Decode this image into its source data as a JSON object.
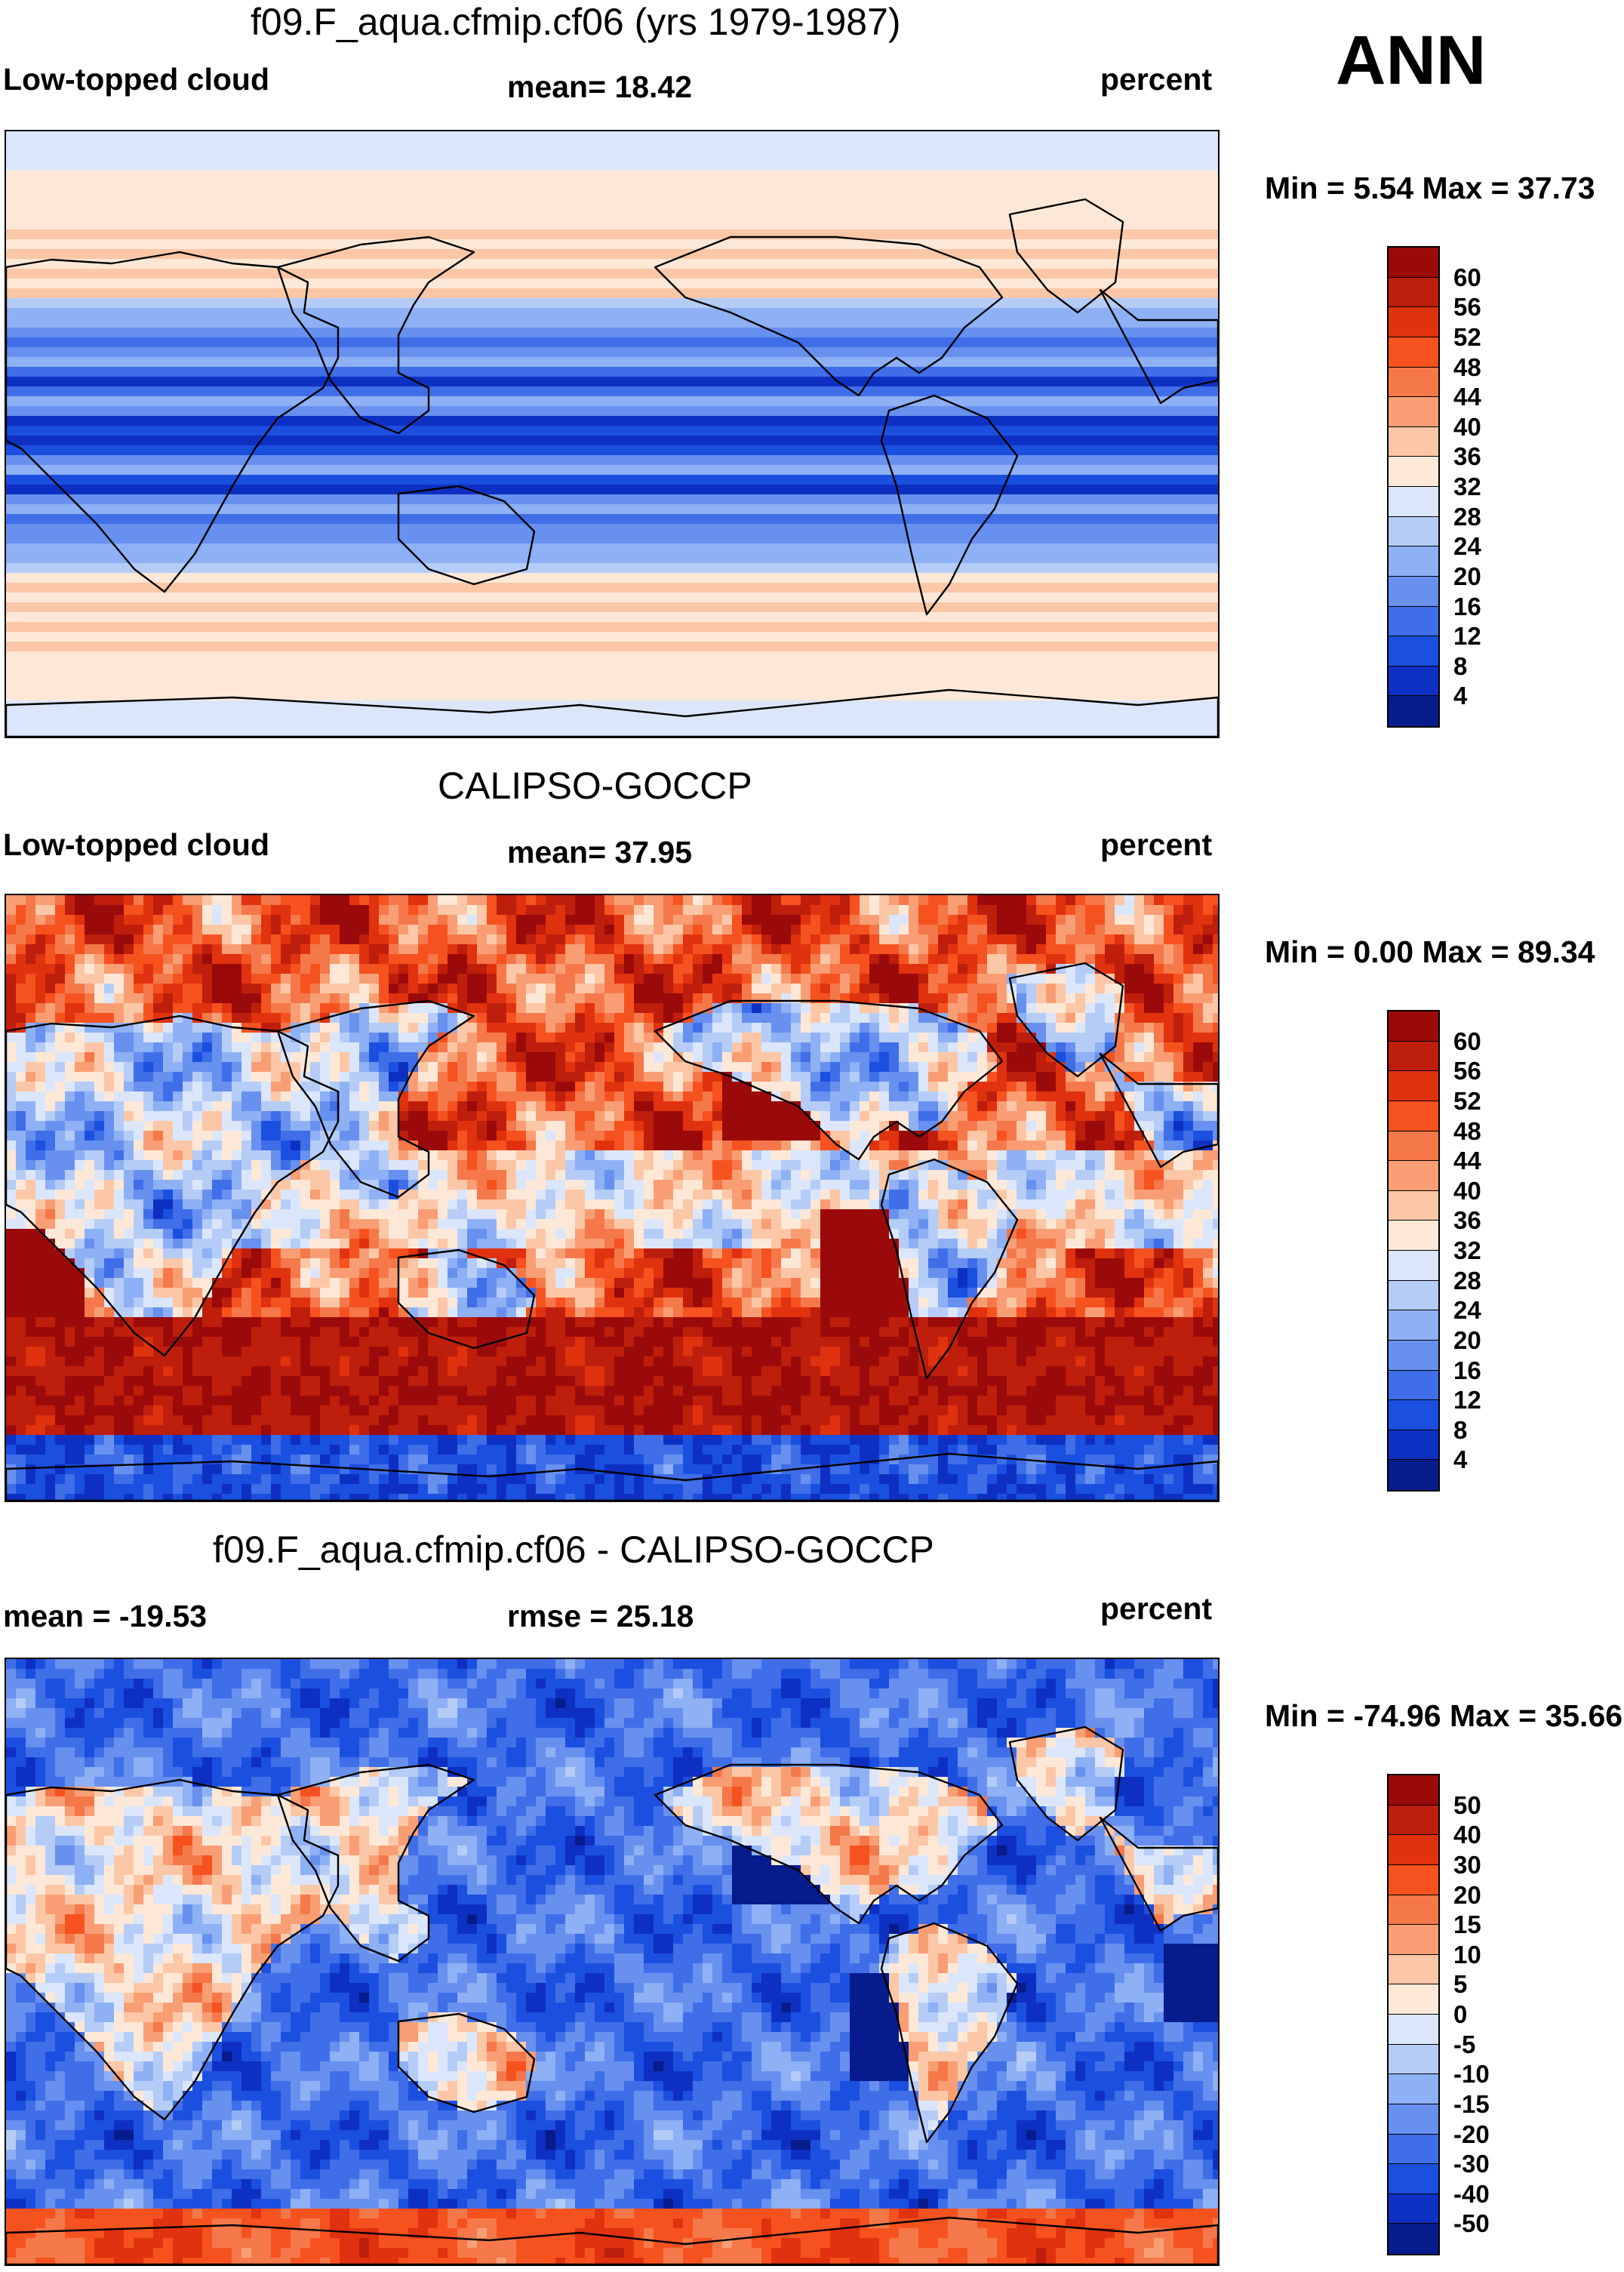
{
  "season": "ANN",
  "panels": [
    {
      "title": "f09.F_aqua.cfmip.cf06 (yrs 1979-1987)",
      "left_label": "Low-topped cloud",
      "center_label": "mean=  18.42",
      "right_label": "percent",
      "minmax": "Min =   5.54 Max =  37.73",
      "colorbar": {
        "ticks": [
          "60",
          "56",
          "52",
          "48",
          "44",
          "40",
          "36",
          "32",
          "28",
          "24",
          "20",
          "16",
          "12",
          "8",
          "4"
        ],
        "colors": [
          "#9b0a0a",
          "#be1e0c",
          "#e0320f",
          "#f65220",
          "#f5784a",
          "#f99e74",
          "#fcc7a6",
          "#fde8d8",
          "#dbe6fa",
          "#b5ccf7",
          "#8eb0f4",
          "#6890ef",
          "#3f6ee8",
          "#1b4fdf",
          "#0e30c2",
          "#061b8c"
        ]
      },
      "field": "model"
    },
    {
      "title": "CALIPSO-GOCCP",
      "left_label": "Low-topped cloud",
      "center_label": "mean=  37.95",
      "right_label": "percent",
      "minmax": "Min =   0.00 Max =  89.34",
      "colorbar": {
        "ticks": [
          "60",
          "56",
          "52",
          "48",
          "44",
          "40",
          "36",
          "32",
          "28",
          "24",
          "20",
          "16",
          "12",
          "8",
          "4"
        ],
        "colors": [
          "#9b0a0a",
          "#be1e0c",
          "#e0320f",
          "#f65220",
          "#f5784a",
          "#f99e74",
          "#fcc7a6",
          "#fde8d8",
          "#dbe6fa",
          "#b5ccf7",
          "#8eb0f4",
          "#6890ef",
          "#3f6ee8",
          "#1b4fdf",
          "#0e30c2",
          "#061b8c"
        ]
      },
      "field": "obs"
    },
    {
      "title": "f09.F_aqua.cfmip.cf06 - CALIPSO-GOCCP",
      "left_label": "mean = -19.53",
      "center_label": "rmse =  25.18",
      "right_label": "percent",
      "minmax": "Min = -74.96 Max =  35.66",
      "colorbar": {
        "ticks": [
          "50",
          "40",
          "30",
          "20",
          "15",
          "10",
          "5",
          "0",
          "-5",
          "-10",
          "-15",
          "-20",
          "-30",
          "-40",
          "-50"
        ],
        "colors": [
          "#9b0a0a",
          "#be1e0c",
          "#e0320f",
          "#f65220",
          "#f5784a",
          "#f99e74",
          "#fcc7a6",
          "#fde8d8",
          "#dbe6fa",
          "#b5ccf7",
          "#8eb0f4",
          "#6890ef",
          "#3f6ee8",
          "#1b4fdf",
          "#0e30c2",
          "#061b8c"
        ]
      },
      "field": "diff"
    }
  ]
}
